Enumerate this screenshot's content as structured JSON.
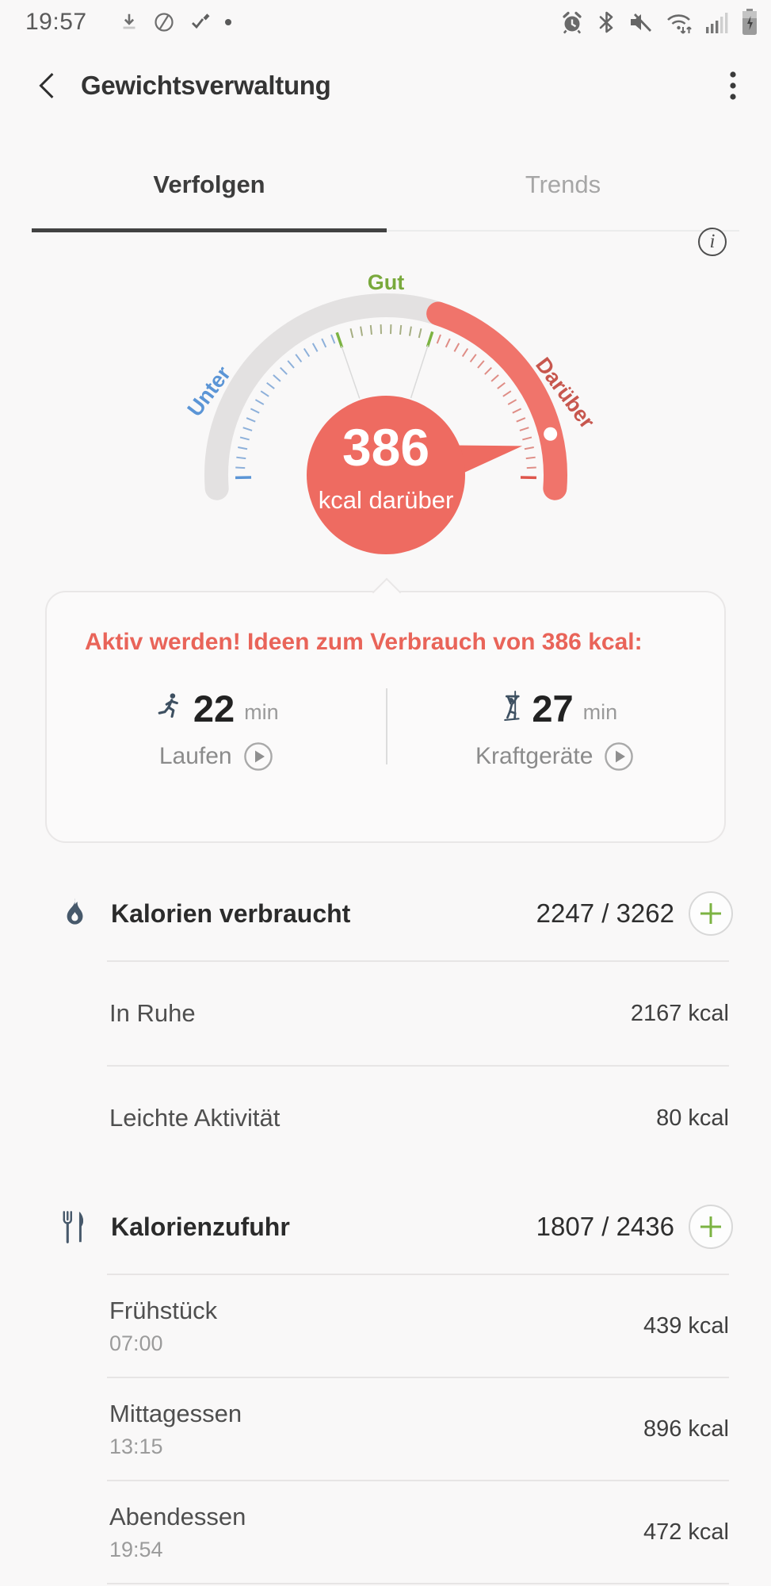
{
  "status_bar": {
    "time": "19:57",
    "left_icons": [
      "download-icon",
      "data-saver-off-icon",
      "pen-check-icon",
      "notification-dot-icon"
    ],
    "right_icons": [
      "alarm-icon",
      "bluetooth-icon",
      "mute-icon",
      "wifi-arrows-icon",
      "signal-icon",
      "battery-charging-icon"
    ]
  },
  "header": {
    "title": "Gewichtsverwaltung"
  },
  "tabs": [
    {
      "label": "Verfolgen",
      "active": true
    },
    {
      "label": "Trends",
      "active": false
    }
  ],
  "info": {
    "glyph": "i"
  },
  "chart_data": {
    "type": "gauge",
    "value": 386,
    "value_label": "kcal darüber",
    "current_zone": "Darüber",
    "zones": [
      {
        "label": "Unter",
        "color": "#5b95d6"
      },
      {
        "label": "Gut",
        "color": "#7cb342"
      },
      {
        "label": "Darüber",
        "color": "#c7574e"
      }
    ],
    "arc": {
      "track_color": "#e3e1e1",
      "over_color": "#f0746b",
      "bubble_color": "#ee6b61"
    }
  },
  "suggestion_card": {
    "title": "Aktiv werden! Ideen zum Verbrauch von 386 kcal:",
    "activities": [
      {
        "icon": "runner-icon",
        "minutes": "22",
        "unit": "min",
        "label": "Laufen"
      },
      {
        "icon": "strength-icon",
        "minutes": "27",
        "unit": "min",
        "label": "Kraftgeräte"
      }
    ]
  },
  "burned": {
    "icon": "flame-icon",
    "title": "Kalorien verbraucht",
    "value": "2247 / 3262",
    "items": [
      {
        "label": "In Ruhe",
        "value": "2167 kcal"
      },
      {
        "label": "Leichte Aktivität",
        "value": "80 kcal"
      }
    ]
  },
  "intake": {
    "icon": "utensils-icon",
    "title": "Kalorienzufuhr",
    "value": "1807 / 2436",
    "items": [
      {
        "label": "Frühstück",
        "time": "07:00",
        "value": "439 kcal"
      },
      {
        "label": "Mittagessen",
        "time": "13:15",
        "value": "896 kcal"
      },
      {
        "label": "Abendessen",
        "time": "19:54",
        "value": "472 kcal"
      }
    ]
  },
  "colors": {
    "accent": "#ee6b61",
    "good": "#7cb342",
    "under": "#5b95d6",
    "icon_slate": "#47596b"
  }
}
